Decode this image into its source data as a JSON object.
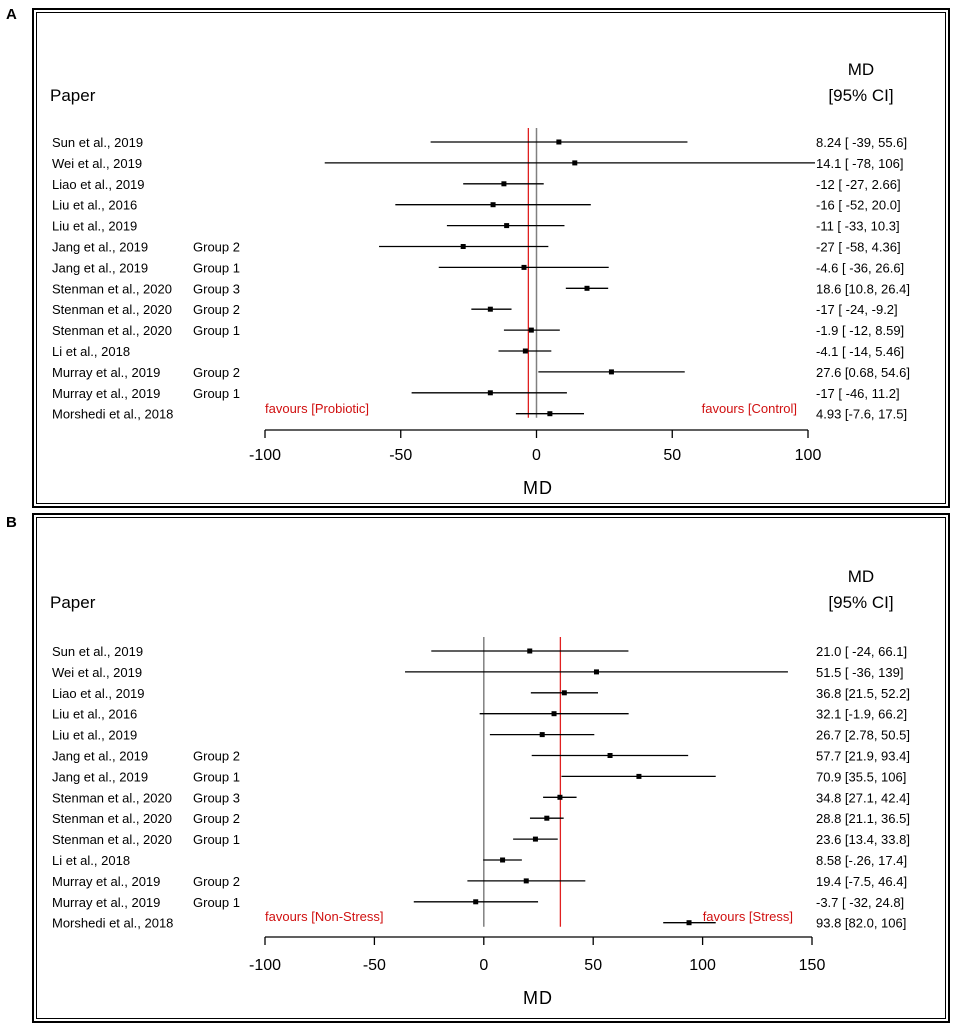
{
  "panels": [
    {
      "label": "A",
      "paper_header": "Paper",
      "md_header_line1": "MD",
      "md_header_line2": "[95% CI]",
      "favours_left": "favours [Probiotic]",
      "favours_right": "favours [Control]",
      "xlabel": "MD",
      "ticks": [
        "-100",
        "-50",
        "0",
        "50",
        "100"
      ]
    },
    {
      "label": "B",
      "paper_header": "Paper",
      "md_header_line1": "MD",
      "md_header_line2": "[95% CI]",
      "favours_left": "favours [Non-Stress]",
      "favours_right": "favours [Stress]",
      "xlabel": "MD",
      "ticks": [
        "-100",
        "-50",
        "0",
        "50",
        "100",
        "150"
      ]
    }
  ],
  "chart_data": [
    {
      "type": "forest",
      "title": "A",
      "xlabel": "MD",
      "xlim": [
        -100,
        100
      ],
      "ticks": [
        -100,
        -50,
        0,
        50,
        100
      ],
      "null_line": 0,
      "summary_line": -3,
      "legend_left": "favours [Probiotic]",
      "legend_right": "favours [Control]",
      "studies": [
        {
          "paper": "Sun et al., 2019",
          "group": "",
          "md": 8.24,
          "lo": -39,
          "hi": 55.6,
          "text": "8.24 [ -39, 55.6]"
        },
        {
          "paper": "Wei et al., 2019",
          "group": "",
          "md": 14.1,
          "lo": -78,
          "hi": 106,
          "text": "14.1 [ -78,  106]"
        },
        {
          "paper": "Liao et al., 2019",
          "group": "",
          "md": -12,
          "lo": -27,
          "hi": 2.66,
          "text": "-12 [ -27, 2.66]"
        },
        {
          "paper": "Liu et al., 2016",
          "group": "",
          "md": -16,
          "lo": -52,
          "hi": 20.0,
          "text": "-16 [ -52, 20.0]"
        },
        {
          "paper": "Liu et al., 2019",
          "group": "",
          "md": -11,
          "lo": -33,
          "hi": 10.3,
          "text": "-11 [ -33, 10.3]"
        },
        {
          "paper": "Jang et al., 2019",
          "group": "Group 2",
          "md": -27,
          "lo": -58,
          "hi": 4.36,
          "text": "-27 [ -58, 4.36]"
        },
        {
          "paper": "Jang et al., 2019",
          "group": "Group 1",
          "md": -4.6,
          "lo": -36,
          "hi": 26.6,
          "text": "-4.6 [ -36, 26.6]"
        },
        {
          "paper": "Stenman et al., 2020",
          "group": "Group 3",
          "md": 18.6,
          "lo": 10.8,
          "hi": 26.4,
          "text": "18.6 [10.8, 26.4]"
        },
        {
          "paper": "Stenman et al., 2020",
          "group": "Group 2",
          "md": -17,
          "lo": -24,
          "hi": -9.2,
          "text": "-17 [ -24, -9.2]"
        },
        {
          "paper": "Stenman et al., 2020",
          "group": "Group 1",
          "md": -1.9,
          "lo": -12,
          "hi": 8.59,
          "text": "-1.9 [ -12, 8.59]"
        },
        {
          "paper": "Li et al., 2018",
          "group": "",
          "md": -4.1,
          "lo": -14,
          "hi": 5.46,
          "text": "-4.1 [ -14, 5.46]"
        },
        {
          "paper": "Murray et al., 2019",
          "group": "Group 2",
          "md": 27.6,
          "lo": 0.68,
          "hi": 54.6,
          "text": "27.6 [0.68, 54.6]"
        },
        {
          "paper": "Murray et al., 2019",
          "group": "Group 1",
          "md": -17,
          "lo": -46,
          "hi": 11.2,
          "text": "-17 [ -46, 11.2]"
        },
        {
          "paper": "Morshedi et al., 2018",
          "group": "",
          "md": 4.93,
          "lo": -7.6,
          "hi": 17.5,
          "text": "4.93 [-7.6, 17.5]"
        }
      ]
    },
    {
      "type": "forest",
      "title": "B",
      "xlabel": "MD",
      "xlim": [
        -100,
        150
      ],
      "ticks": [
        -100,
        -50,
        0,
        50,
        100,
        150
      ],
      "null_line": 0,
      "summary_line": 35,
      "legend_left": "favours [Non-Stress]",
      "legend_right": "favours [Stress]",
      "studies": [
        {
          "paper": "Sun et al., 2019",
          "group": "",
          "md": 21.0,
          "lo": -24,
          "hi": 66.1,
          "text": "21.0 [ -24, 66.1]"
        },
        {
          "paper": "Wei et al., 2019",
          "group": "",
          "md": 51.5,
          "lo": -36,
          "hi": 139,
          "text": "51.5 [ -36,  139]"
        },
        {
          "paper": "Liao et al., 2019",
          "group": "",
          "md": 36.8,
          "lo": 21.5,
          "hi": 52.2,
          "text": "36.8 [21.5, 52.2]"
        },
        {
          "paper": "Liu et al., 2016",
          "group": "",
          "md": 32.1,
          "lo": -1.9,
          "hi": 66.2,
          "text": "32.1 [-1.9, 66.2]"
        },
        {
          "paper": "Liu et al., 2019",
          "group": "",
          "md": 26.7,
          "lo": 2.78,
          "hi": 50.5,
          "text": "26.7 [2.78, 50.5]"
        },
        {
          "paper": "Jang et al., 2019",
          "group": "Group 2",
          "md": 57.7,
          "lo": 21.9,
          "hi": 93.4,
          "text": "57.7 [21.9, 93.4]"
        },
        {
          "paper": "Jang et al., 2019",
          "group": "Group 1",
          "md": 70.9,
          "lo": 35.5,
          "hi": 106,
          "text": "70.9 [35.5,  106]"
        },
        {
          "paper": "Stenman et al., 2020",
          "group": "Group 3",
          "md": 34.8,
          "lo": 27.1,
          "hi": 42.4,
          "text": "34.8 [27.1, 42.4]"
        },
        {
          "paper": "Stenman et al., 2020",
          "group": "Group 2",
          "md": 28.8,
          "lo": 21.1,
          "hi": 36.5,
          "text": "28.8 [21.1, 36.5]"
        },
        {
          "paper": "Stenman et al., 2020",
          "group": "Group 1",
          "md": 23.6,
          "lo": 13.4,
          "hi": 33.8,
          "text": "23.6 [13.4, 33.8]"
        },
        {
          "paper": "Li et al., 2018",
          "group": "",
          "md": 8.58,
          "lo": -0.26,
          "hi": 17.4,
          "text": "8.58 [-.26, 17.4]"
        },
        {
          "paper": "Murray et al., 2019",
          "group": "Group 2",
          "md": 19.4,
          "lo": -7.5,
          "hi": 46.4,
          "text": "19.4 [-7.5, 46.4]"
        },
        {
          "paper": "Murray et al., 2019",
          "group": "Group 1",
          "md": -3.7,
          "lo": -32,
          "hi": 24.8,
          "text": "-3.7 [ -32, 24.8]"
        },
        {
          "paper": "Morshedi et al., 2018",
          "group": "",
          "md": 93.8,
          "lo": 82.0,
          "hi": 106,
          "text": "93.8 [82.0,  106]"
        }
      ]
    }
  ],
  "colors": {
    "summary_line": "#e02020",
    "null_line": "#808080",
    "favours_text": "#d01010",
    "ink": "#000000"
  }
}
